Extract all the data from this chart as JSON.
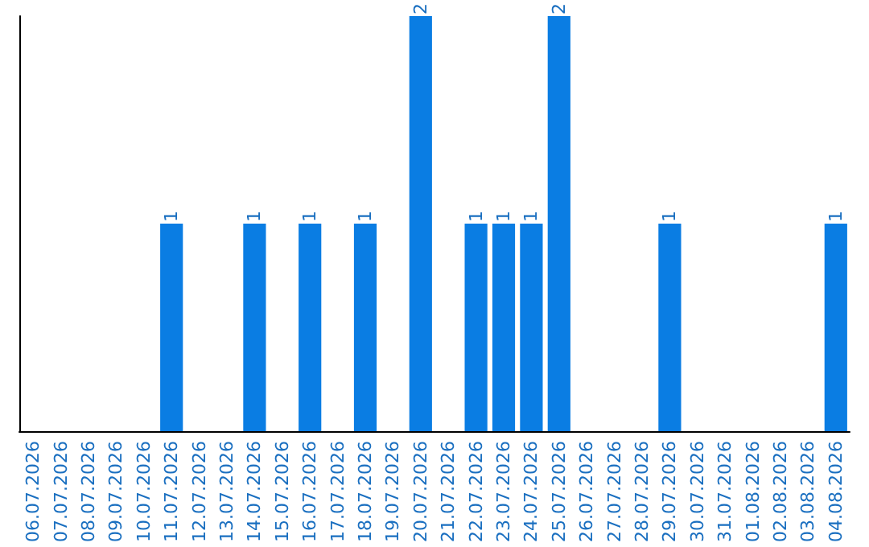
{
  "chart_data": {
    "type": "bar",
    "categories": [
      "06.07.2026",
      "07.07.2026",
      "08.07.2026",
      "09.07.2026",
      "10.07.2026",
      "11.07.2026",
      "12.07.2026",
      "13.07.2026",
      "14.07.2026",
      "15.07.2026",
      "16.07.2026",
      "17.07.2026",
      "18.07.2026",
      "19.07.2026",
      "20.07.2026",
      "21.07.2026",
      "22.07.2026",
      "23.07.2026",
      "24.07.2026",
      "25.07.2026",
      "26.07.2026",
      "27.07.2026",
      "28.07.2026",
      "29.07.2026",
      "30.07.2026",
      "31.07.2026",
      "01.08.2026",
      "02.08.2026",
      "03.08.2026",
      "04.08.2026"
    ],
    "values": [
      0,
      0,
      0,
      0,
      0,
      1,
      0,
      0,
      1,
      0,
      1,
      0,
      1,
      0,
      2,
      0,
      1,
      1,
      1,
      2,
      0,
      0,
      0,
      1,
      0,
      0,
      0,
      0,
      0,
      1
    ],
    "value_labels": [
      null,
      null,
      null,
      null,
      null,
      "1",
      null,
      null,
      "1",
      null,
      "1",
      null,
      "1",
      null,
      "2",
      null,
      "1",
      "1",
      "1",
      "2",
      null,
      null,
      null,
      "1",
      null,
      null,
      null,
      null,
      null,
      "1"
    ],
    "color": "#0a7de3",
    "ylim": [
      0,
      2
    ],
    "tick_labels": "x"
  }
}
